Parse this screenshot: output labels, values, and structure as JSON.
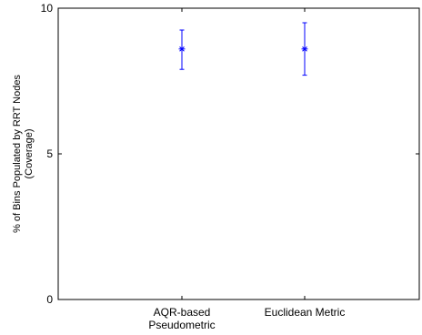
{
  "chart_data": {
    "type": "scatter",
    "title": "",
    "xlabel": "",
    "ylabel_lines": [
      "% of Bins Populated by RRT Nodes",
      "(Coverage)"
    ],
    "ylim": [
      0,
      10
    ],
    "yticks": [
      "0",
      "5",
      "10"
    ],
    "categories": [
      [
        "AQR-based",
        "Pseudometric"
      ],
      [
        "Euclidean Metric"
      ]
    ],
    "series": [
      {
        "marker": "asterisk",
        "color": "#0000ff",
        "values": [
          8.6,
          8.6
        ],
        "error_low": [
          7.9,
          7.7
        ],
        "error_high": [
          9.25,
          9.5
        ]
      }
    ],
    "grid": false,
    "legend": "none"
  }
}
